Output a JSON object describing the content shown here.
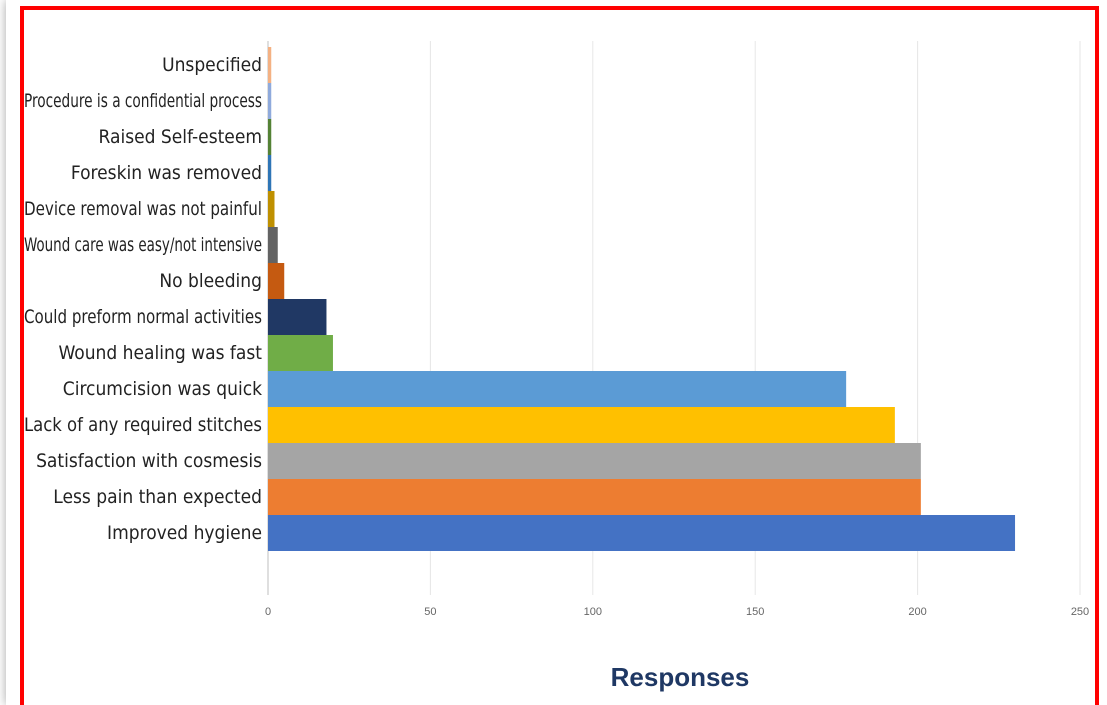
{
  "chart_data": {
    "type": "bar",
    "orientation": "horizontal",
    "xlabel": "Responses",
    "xlim": [
      0,
      250
    ],
    "xticks": [
      0,
      50,
      100,
      150,
      200,
      250
    ],
    "grid": true,
    "categories": [
      "Unspecified",
      "Procedure is a confidential process",
      "Raised Self-esteem",
      "Foreskin was removed",
      "Device removal was not painful",
      "Wound care was easy/not intensive",
      "No bleeding",
      "Could preform normal activities",
      "Wound healing was fast",
      "Circumcision was quick",
      "Lack of any required stitches",
      "Satisfaction with cosmesis",
      "Less pain than expected",
      "Improved hygiene"
    ],
    "values": [
      1,
      1,
      1,
      1,
      2,
      3,
      5,
      18,
      20,
      178,
      193,
      201,
      201,
      230
    ],
    "colors": [
      "#f4b183",
      "#8faadc",
      "#548235",
      "#2e75b6",
      "#bf9000",
      "#636363",
      "#c55a11",
      "#203864",
      "#70ad47",
      "#5b9bd5",
      "#ffc000",
      "#a5a5a5",
      "#ed7d31",
      "#4472c4"
    ]
  }
}
